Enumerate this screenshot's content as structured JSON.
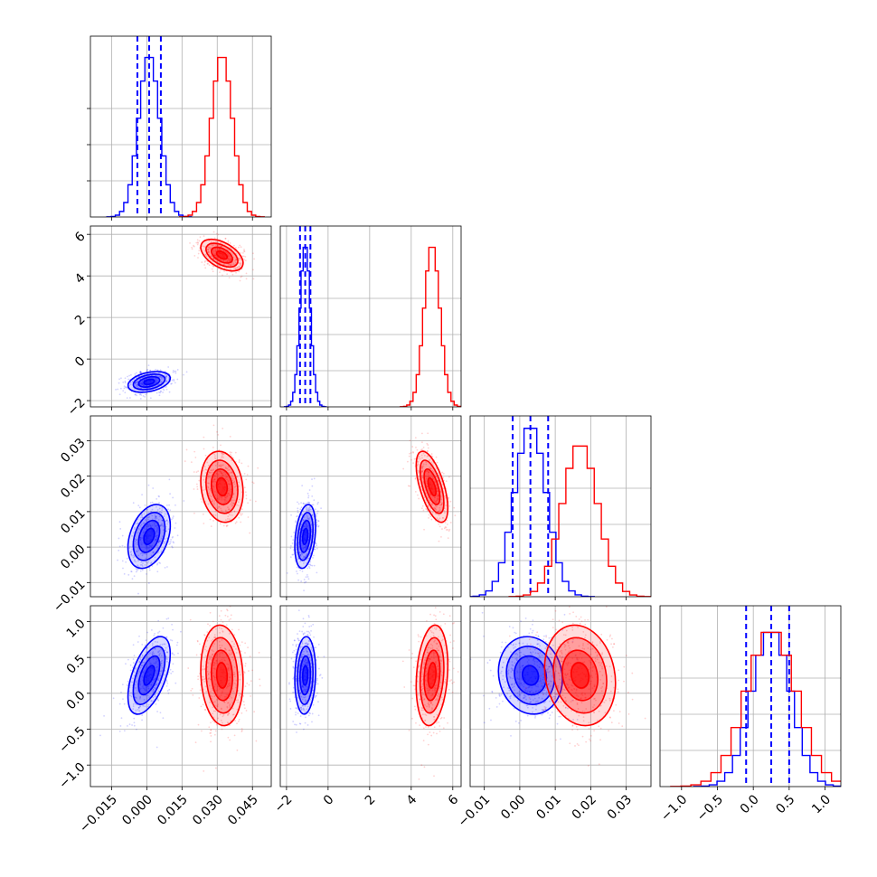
{
  "chart_data": {
    "type": "corner",
    "grid": true,
    "params": [
      {
        "ticks": [
          "−0.015",
          "0.000",
          "0.015",
          "0.030",
          "0.045"
        ],
        "tick_values": [
          -0.015,
          0.0,
          0.015,
          0.03,
          0.045
        ],
        "range": [
          -0.024,
          0.053
        ]
      },
      {
        "ticks": [
          "−2",
          "0",
          "2",
          "4",
          "6"
        ],
        "tick_values": [
          -2,
          0,
          2,
          4,
          6
        ],
        "range": [
          -2.3,
          6.4
        ]
      },
      {
        "ticks": [
          "−0.01",
          "0.00",
          "0.01",
          "0.02",
          "0.03"
        ],
        "tick_values": [
          -0.01,
          0.0,
          0.01,
          0.02,
          0.03
        ],
        "range": [
          -0.014,
          0.037
        ]
      },
      {
        "ticks": [
          "−1.0",
          "−0.5",
          "0.0",
          "0.5",
          "1.0"
        ],
        "tick_values": [
          -1.0,
          -0.5,
          0.0,
          0.5,
          1.0
        ],
        "range": [
          -1.3,
          1.22
        ]
      }
    ],
    "series": [
      {
        "color": "#0000ff",
        "means": [
          0.001,
          -1.1,
          0.003,
          0.25
        ],
        "sds": [
          0.0045,
          0.25,
          0.0045,
          0.27
        ],
        "quantiles": [
          [
            -0.004,
            0.001,
            0.006
          ],
          [
            -1.35,
            -1.1,
            -0.85
          ],
          [
            -0.002,
            0.003,
            0.008
          ],
          [
            -0.1,
            0.25,
            0.5
          ]
        ],
        "hist_peaks": [
          0.9,
          0.9,
          0.95,
          0.87
        ]
      },
      {
        "color": "#ff0000",
        "means": [
          0.032,
          5.0,
          0.017,
          0.25
        ],
        "sds": [
          0.0045,
          0.38,
          0.005,
          0.35
        ],
        "quantiles": [],
        "hist_peaks": [
          0.9,
          0.9,
          0.85,
          0.87
        ]
      }
    ],
    "correlations": {
      "1-0": [
        0.35,
        -0.5
      ],
      "2-0": [
        0.35,
        -0.15
      ],
      "2-1": [
        0.3,
        -0.6
      ],
      "3-0": [
        0.55,
        -0.1
      ],
      "3-1": [
        0.1,
        0.2
      ],
      "3-2": [
        -0.1,
        -0.15
      ]
    }
  }
}
